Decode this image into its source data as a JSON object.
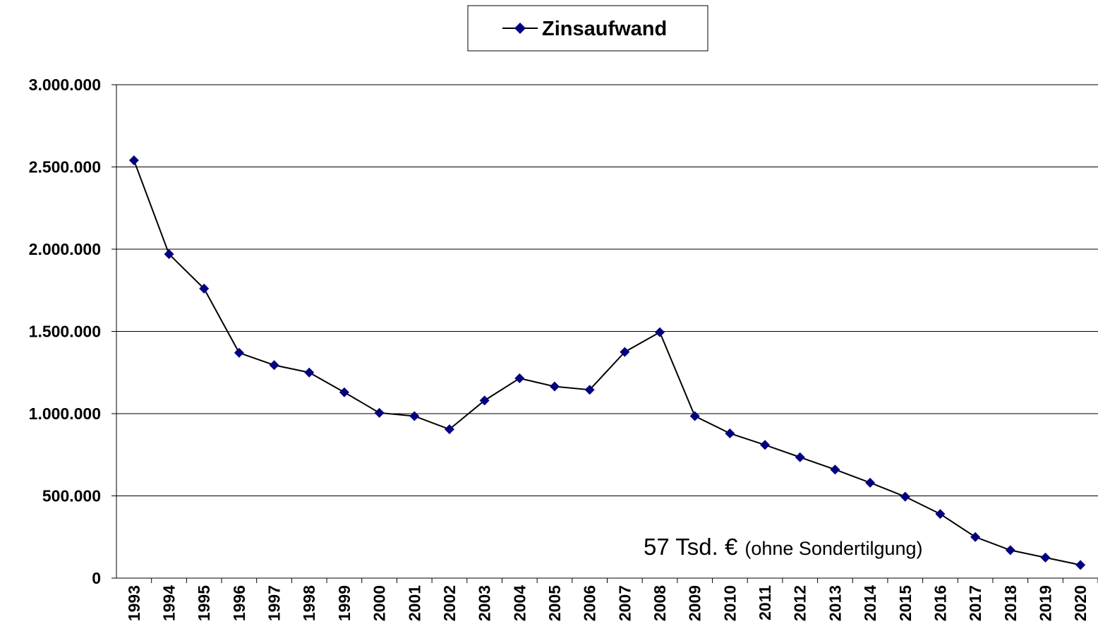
{
  "chart_data": {
    "type": "line",
    "categories": [
      "1993",
      "1994",
      "1995",
      "1996",
      "1997",
      "1998",
      "1999",
      "2000",
      "2001",
      "2002",
      "2003",
      "2004",
      "2005",
      "2006",
      "2007",
      "2008",
      "2009",
      "2010",
      "2011",
      "2012",
      "2013",
      "2014",
      "2015",
      "2016",
      "2017",
      "2018",
      "2019",
      "2020"
    ],
    "series": [
      {
        "name": "Zinsaufwand",
        "color": "#000080",
        "line_color": "#000000",
        "values": [
          2540000,
          1970000,
          1760000,
          1370000,
          1295000,
          1250000,
          1130000,
          1005000,
          985000,
          905000,
          1080000,
          1215000,
          1165000,
          1145000,
          1375000,
          1495000,
          985000,
          880000,
          810000,
          735000,
          660000,
          580000,
          495000,
          390000,
          250000,
          170000,
          125000,
          80000
        ]
      }
    ],
    "ylim": [
      0,
      3000000
    ],
    "yticks": [
      0,
      {
        "value": 500000,
        "label": "500.000"
      },
      {
        "value": 1000000,
        "label": "1.000.000"
      },
      {
        "value": 1500000,
        "label": "1.500.000"
      },
      {
        "value": 2000000,
        "label": "2.000.000"
      },
      {
        "value": 2500000,
        "label": "2.500.000"
      },
      {
        "value": 3000000,
        "label": "3.000.000"
      }
    ],
    "grid": true,
    "legend": "top",
    "annotations": [
      "57 Tsd. €",
      "(ohne Sondertilgung)"
    ]
  }
}
